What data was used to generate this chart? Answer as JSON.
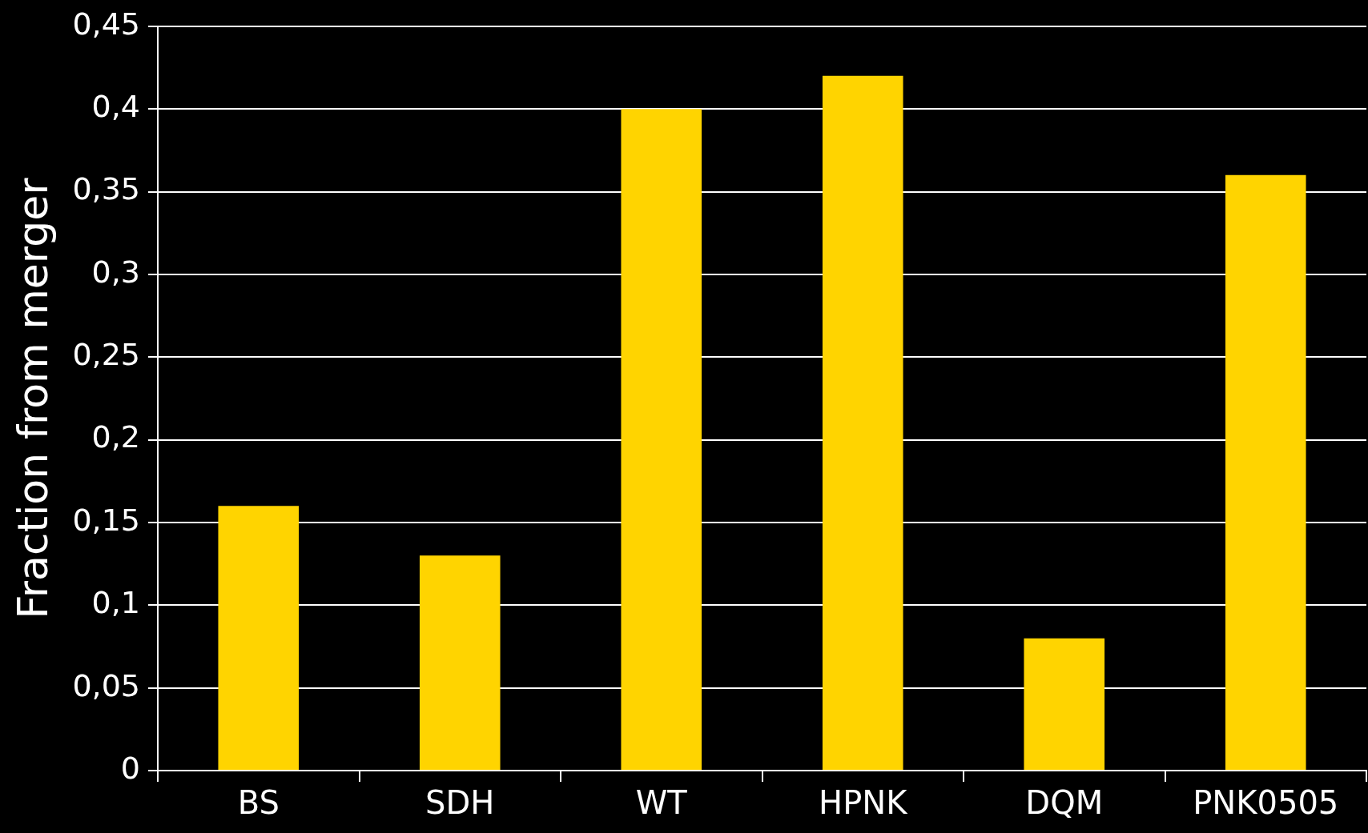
{
  "chart_data": {
    "type": "bar",
    "ylabel": "Fraction from merger",
    "categories": [
      "BS",
      "SDH",
      "WT",
      "HPNK",
      "DQM",
      "PNK0505"
    ],
    "values": [
      0.16,
      0.13,
      0.4,
      0.42,
      0.08,
      0.36
    ],
    "color": "#ffd400",
    "ylim": [
      0,
      0.45
    ],
    "yticks": [
      {
        "value": 0,
        "label": "0"
      },
      {
        "value": 0.05,
        "label": "0,05"
      },
      {
        "value": 0.1,
        "label": "0,1"
      },
      {
        "value": 0.15,
        "label": "0,15"
      },
      {
        "value": 0.2,
        "label": "0,2"
      },
      {
        "value": 0.25,
        "label": "0,25"
      },
      {
        "value": 0.3,
        "label": "0,3"
      },
      {
        "value": 0.35,
        "label": "0,35"
      },
      {
        "value": 0.4,
        "label": "0,4"
      },
      {
        "value": 0.45,
        "label": "0,45"
      }
    ],
    "grid": "y"
  }
}
